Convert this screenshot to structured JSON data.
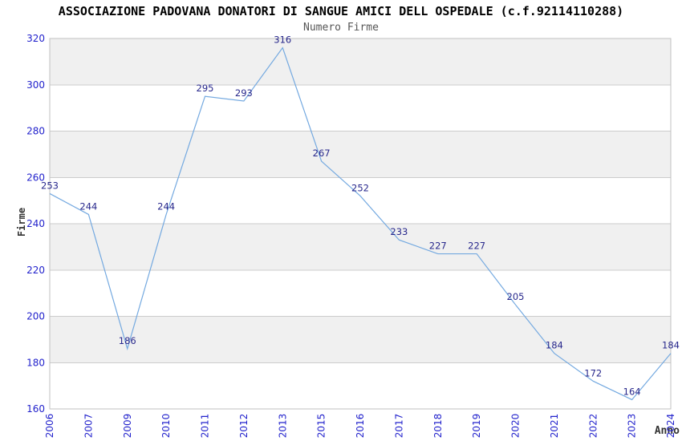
{
  "title": "ASSOCIAZIONE PADOVANA DONATORI DI SANGUE AMICI DELL OSPEDALE (c.f.92114110288)",
  "subtitle": "Numero Firme",
  "chart_data": {
    "type": "line",
    "title": "ASSOCIAZIONE PADOVANA DONATORI DI SANGUE AMICI DELL OSPEDALE (c.f.92114110288)",
    "subtitle": "Numero Firme",
    "xlabel": "Anno",
    "ylabel": "Firme",
    "categories": [
      "2006",
      "2007",
      "2009",
      "2010",
      "2011",
      "2012",
      "2013",
      "2015",
      "2016",
      "2017",
      "2018",
      "2019",
      "2020",
      "2021",
      "2022",
      "2023",
      "2024"
    ],
    "values": [
      253,
      244,
      186,
      244,
      295,
      293,
      316,
      267,
      252,
      233,
      227,
      227,
      205,
      184,
      172,
      164,
      184
    ],
    "ylim": [
      160,
      320
    ],
    "ytick_step": 20,
    "legend": "none",
    "grid": "horizontal alternating bands",
    "colors": {
      "line": "#74a9e0",
      "value_label": "#28288c",
      "tick_label": "#2222cc",
      "band": "#f0f0f0",
      "band_alt": "#ffffff",
      "gridline": "#cccccc",
      "plot_border": "#c0c0c0",
      "axis_title": "#333333",
      "title": "#000000",
      "subtitle": "#565656"
    }
  }
}
